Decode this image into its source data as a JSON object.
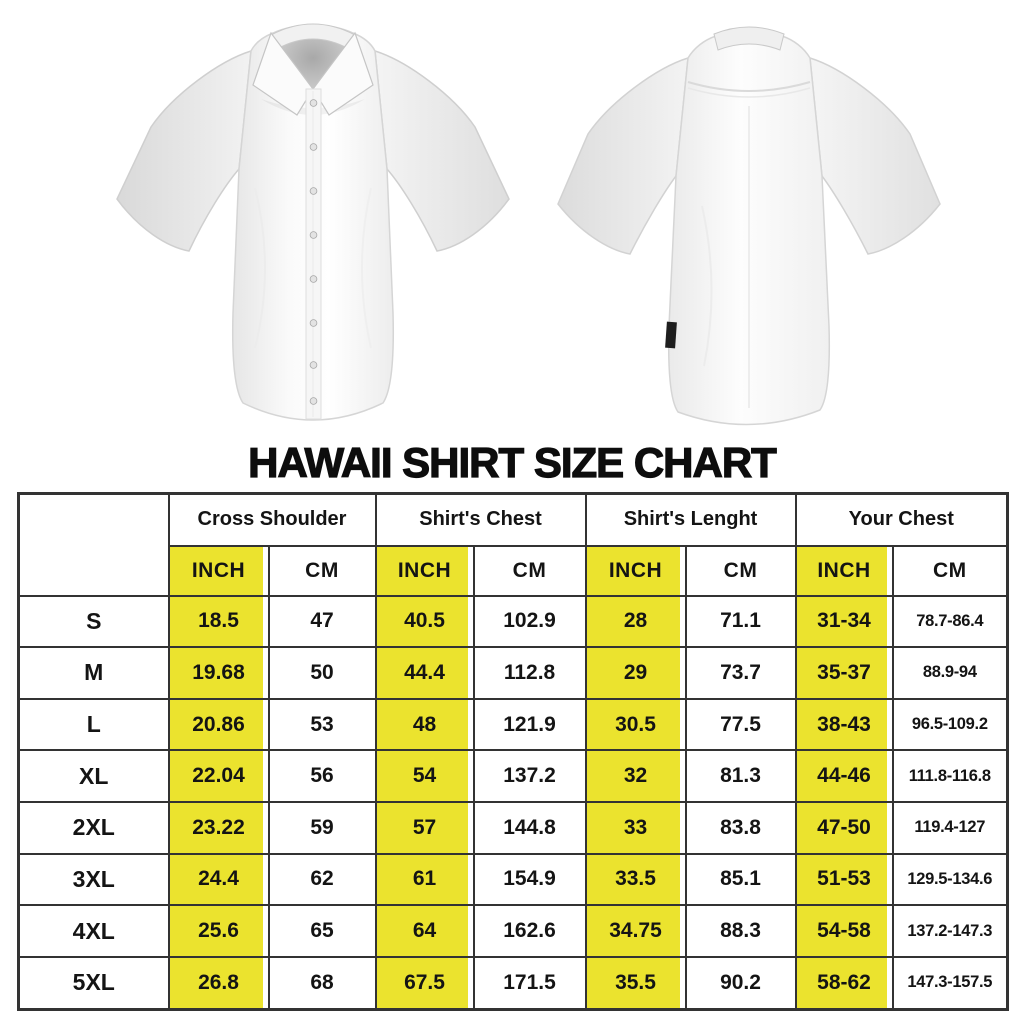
{
  "chart_data": {
    "type": "table",
    "title": "HAWAII SHIRT SIZE CHART",
    "column_groups": [
      "Cross Shoulder",
      "Shirt's Chest",
      "Shirt's Lenght",
      "Your Chest"
    ],
    "units": [
      "INCH",
      "CM"
    ],
    "size_column_header": "",
    "rows": [
      {
        "size": "S",
        "values": [
          "18.5",
          "47",
          "40.5",
          "102.9",
          "28",
          "71.1",
          "31-34",
          "78.7-86.4"
        ]
      },
      {
        "size": "M",
        "values": [
          "19.68",
          "50",
          "44.4",
          "112.8",
          "29",
          "73.7",
          "35-37",
          "88.9-94"
        ]
      },
      {
        "size": "L",
        "values": [
          "20.86",
          "53",
          "48",
          "121.9",
          "30.5",
          "77.5",
          "38-43",
          "96.5-109.2"
        ]
      },
      {
        "size": "XL",
        "values": [
          "22.04",
          "56",
          "54",
          "137.2",
          "32",
          "81.3",
          "44-46",
          "111.8-116.8"
        ]
      },
      {
        "size": "2XL",
        "values": [
          "23.22",
          "59",
          "57",
          "144.8",
          "33",
          "83.8",
          "47-50",
          "119.4-127"
        ]
      },
      {
        "size": "3XL",
        "values": [
          "24.4",
          "62",
          "61",
          "154.9",
          "33.5",
          "85.1",
          "51-53",
          "129.5-134.6"
        ]
      },
      {
        "size": "4XL",
        "values": [
          "25.6",
          "65",
          "64",
          "162.6",
          "34.75",
          "88.3",
          "54-58",
          "137.2-147.3"
        ]
      },
      {
        "size": "5XL",
        "values": [
          "26.8",
          "68",
          "67.5",
          "171.5",
          "35.5",
          "90.2",
          "58-62",
          "147.3-157.5"
        ]
      }
    ],
    "layout_hints": {
      "highlighted_columns": "INCH columns have yellow highlight stripe",
      "grid": "all cells bordered dark gray"
    }
  },
  "images": {
    "front_shirt": "white short-sleeve button-up shirt, front view",
    "back_shirt": "white short-sleeve button-up shirt, back view"
  },
  "colors": {
    "highlight_yellow": "#ebe32e",
    "table_border": "#333333",
    "text": "#141414",
    "background": "#ffffff"
  }
}
